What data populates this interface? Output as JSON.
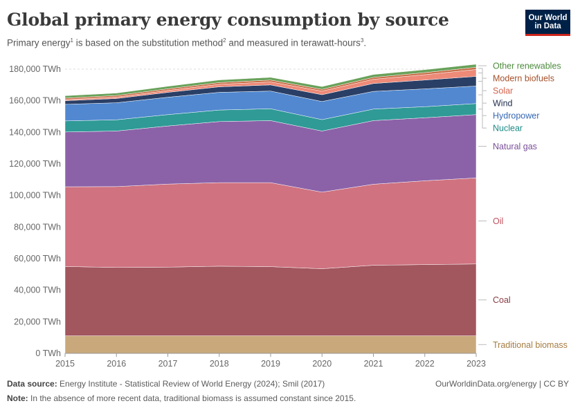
{
  "header": {
    "title": "Global primary energy consumption by source",
    "subtitle_pre": "Primary energy",
    "subtitle_sup1": "1",
    "subtitle_mid": " is based on the substitution method",
    "subtitle_sup2": "2",
    "subtitle_post": " and measured in terawatt-hours",
    "subtitle_sup3": "3",
    "subtitle_end": "."
  },
  "logo": {
    "line1": "Our World",
    "line2": "in Data"
  },
  "footer": {
    "source_label": "Data source:",
    "source_text": " Energy Institute - Statistical Review of World Energy (2024); Smil (2017)",
    "url_text": "OurWorldinData.org/energy | CC BY",
    "note_label": "Note:",
    "note_text": " In the absence of more recent data, traditional biomass is assumed constant since 2015."
  },
  "chart_data": {
    "type": "area",
    "stacked": true,
    "x": [
      2015,
      2016,
      2017,
      2018,
      2019,
      2020,
      2021,
      2022,
      2023
    ],
    "ylim": [
      0,
      180000
    ],
    "yticks": [
      0,
      20000,
      40000,
      60000,
      80000,
      100000,
      120000,
      140000,
      160000,
      180000
    ],
    "ytick_labels": [
      "0 TWh",
      "20,000 TWh",
      "40,000 TWh",
      "60,000 TWh",
      "80,000 TWh",
      "100,000 TWh",
      "120,000 TWh",
      "140,000 TWh",
      "160,000 TWh",
      "180,000 TWh"
    ],
    "xtick_labels": [
      "2015",
      "2016",
      "2017",
      "2018",
      "2019",
      "2020",
      "2021",
      "2022",
      "2023"
    ],
    "grid": "horizontal dashed",
    "legend": "right, inline labels",
    "series": [
      {
        "name": "Traditional biomass",
        "color": "#c9a97b",
        "label_color": "#a67c40",
        "values": [
          11111,
          11111,
          11111,
          11111,
          11111,
          11111,
          11111,
          11111,
          11111
        ]
      },
      {
        "name": "Coal",
        "color": "#a2565e",
        "label_color": "#8a3b43",
        "values": [
          43900,
          43300,
          43500,
          44100,
          43800,
          42500,
          44700,
          45100,
          45500
        ]
      },
      {
        "name": "Oil",
        "color": "#d07280",
        "label_color": "#c0505e",
        "values": [
          50500,
          51200,
          52600,
          52900,
          53200,
          48500,
          51300,
          53100,
          54500
        ]
      },
      {
        "name": "Natural gas",
        "color": "#8b62a8",
        "label_color": "#7a4f99",
        "values": [
          34700,
          35200,
          36800,
          38700,
          39300,
          38700,
          40300,
          39900,
          40100
        ]
      },
      {
        "name": "Nuclear",
        "color": "#2f9a96",
        "label_color": "#1c8a85",
        "values": [
          7000,
          7100,
          7200,
          7300,
          7500,
          7200,
          7300,
          7000,
          7000
        ]
      },
      {
        "name": "Hydropower",
        "color": "#5188d0",
        "label_color": "#3567b3",
        "values": [
          10500,
          10800,
          11000,
          11200,
          11200,
          11500,
          11200,
          11300,
          11100
        ]
      },
      {
        "name": "Wind",
        "color": "#2a3f66",
        "label_color": "#1d2c4d",
        "values": [
          2300,
          2700,
          3100,
          3500,
          3900,
          4300,
          5000,
          5600,
          6100
        ]
      },
      {
        "name": "Solar",
        "color": "#ee8a78",
        "label_color": "#d4624c",
        "values": [
          700,
          900,
          1200,
          1600,
          1900,
          2300,
          2700,
          3400,
          4400
        ]
      },
      {
        "name": "Modern biofuels",
        "color": "#c76e48",
        "label_color": "#a5502a",
        "values": [
          950,
          1000,
          1050,
          1100,
          1200,
          1100,
          1200,
          1300,
          1400
        ]
      },
      {
        "name": "Other renewables",
        "color": "#69a15a",
        "label_color": "#4c8a3c",
        "values": [
          1500,
          1550,
          1600,
          1650,
          1700,
          1750,
          1800,
          1850,
          1900
        ]
      }
    ]
  }
}
